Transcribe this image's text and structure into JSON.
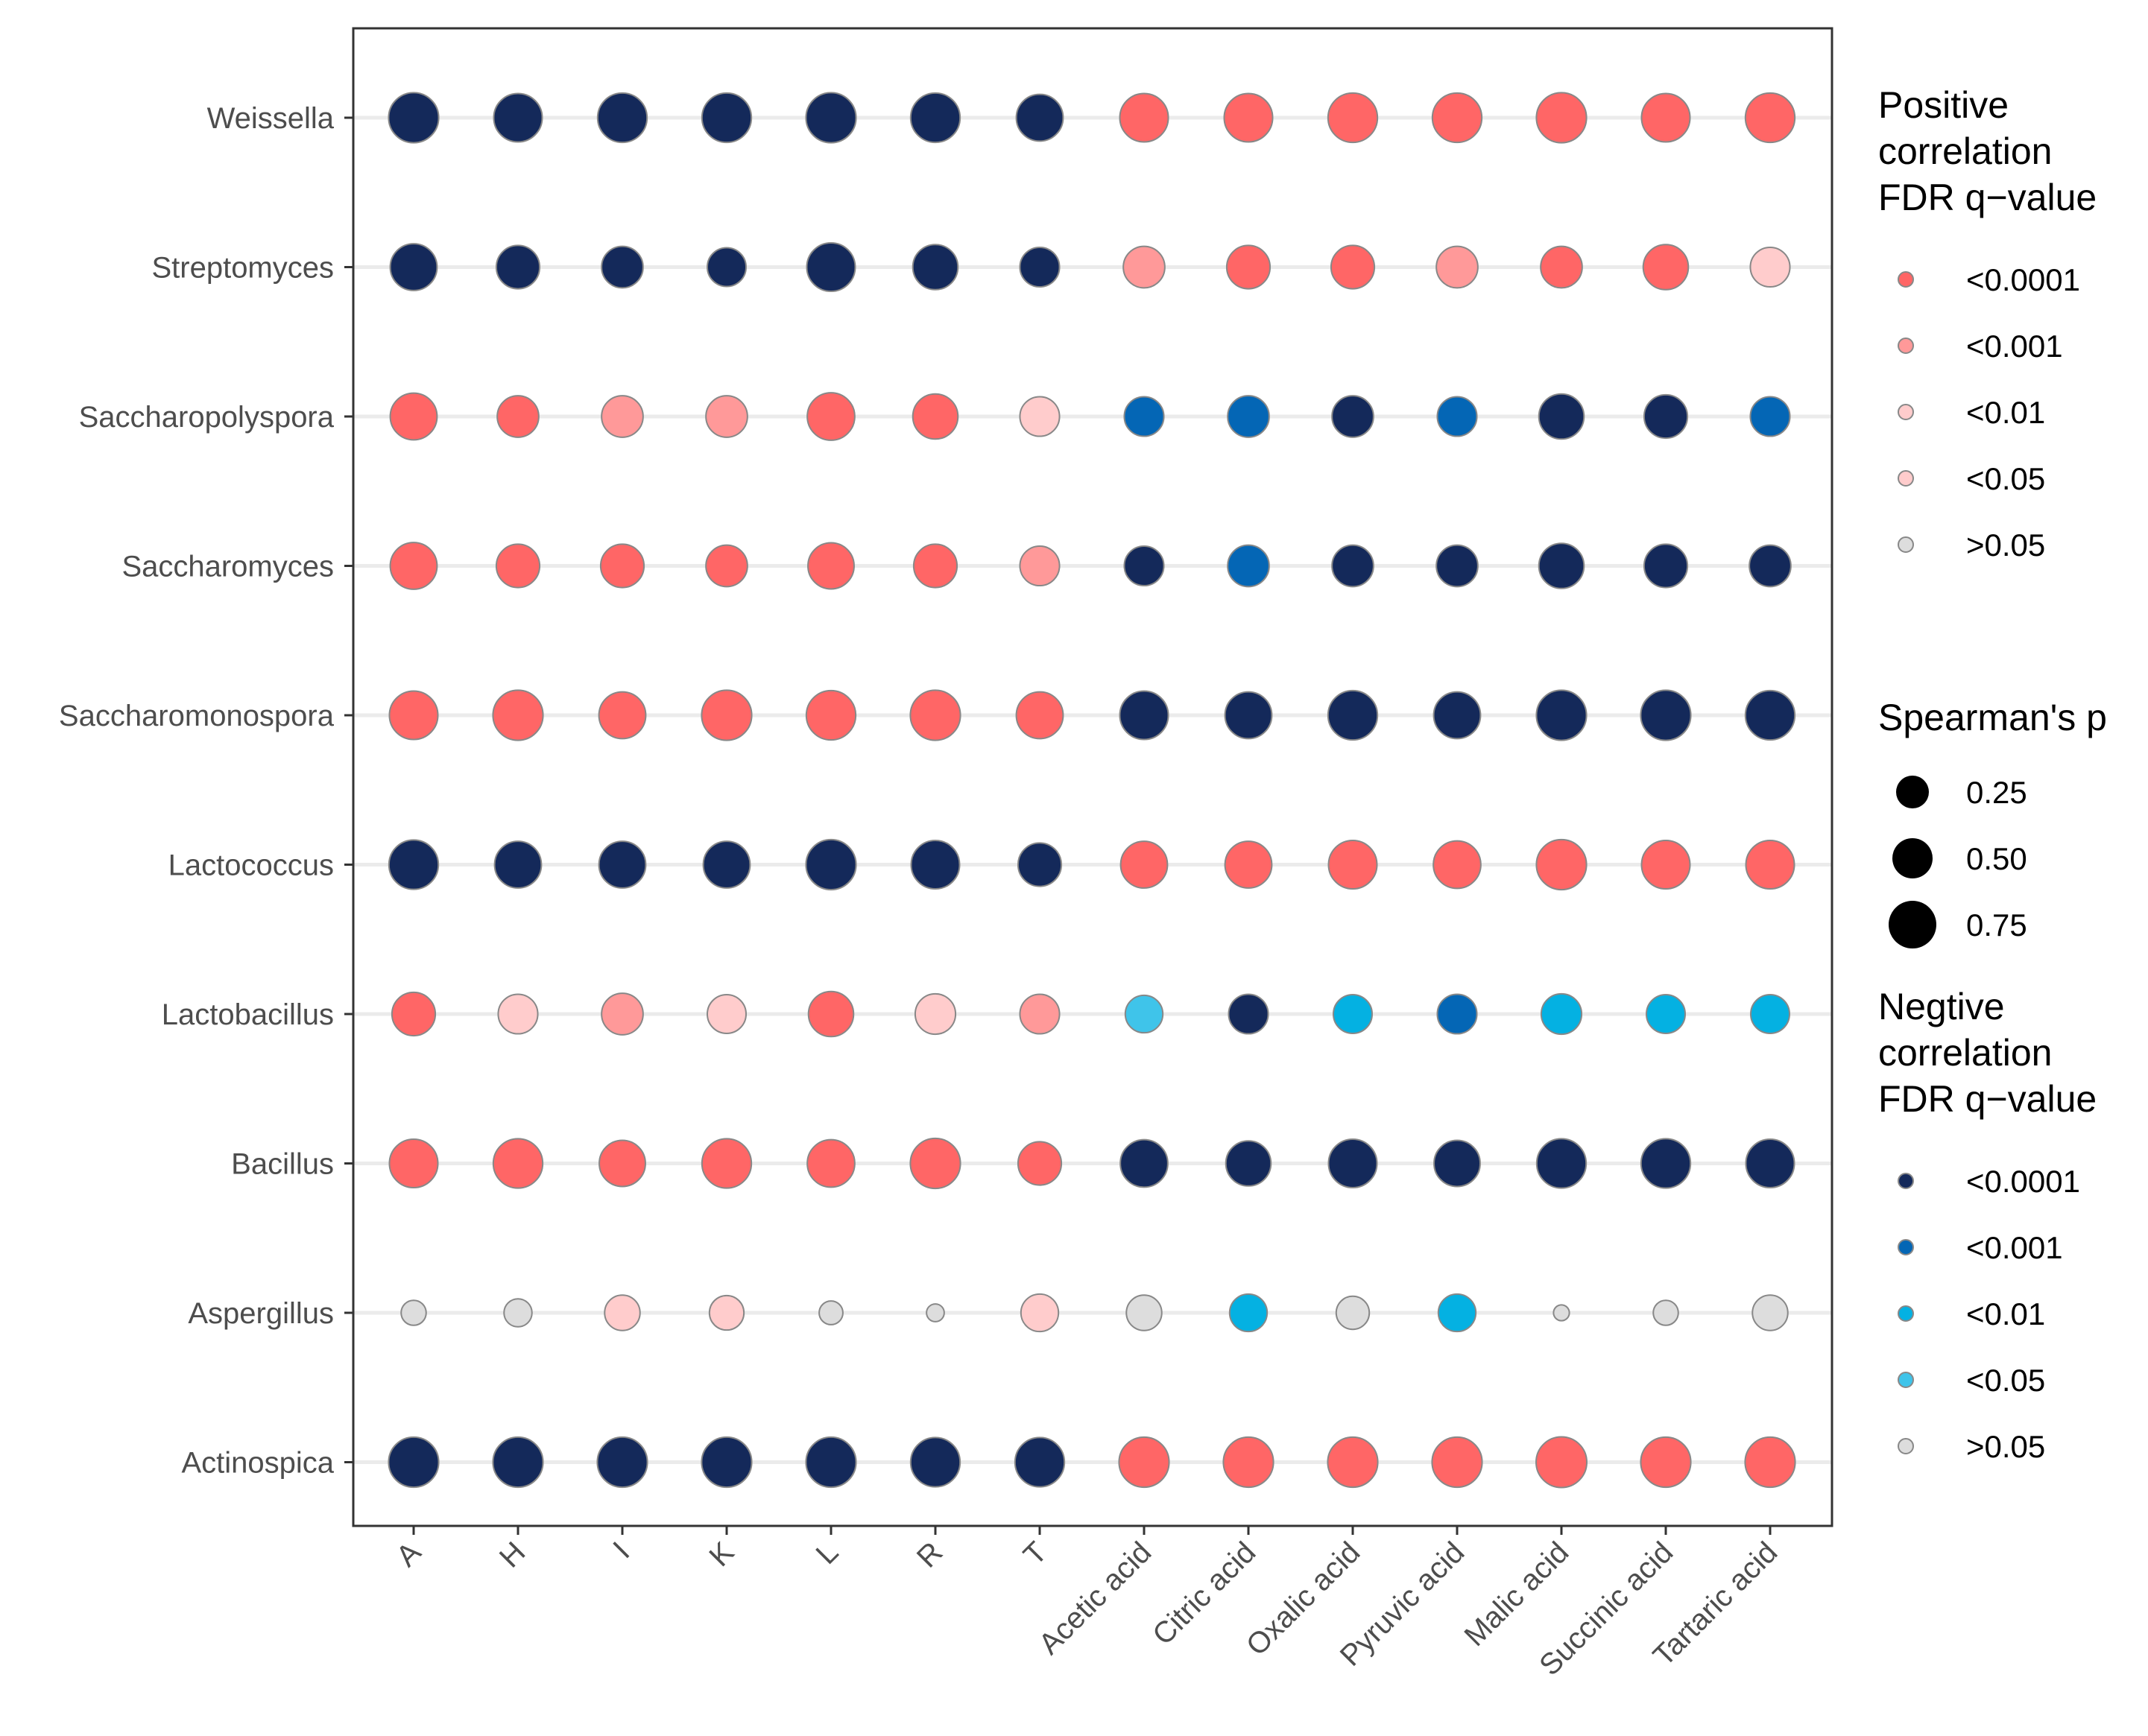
{
  "chart_data": {
    "type": "bubble-matrix",
    "x_categories": [
      "A",
      "H",
      "I",
      "K",
      "L",
      "R",
      "T",
      "Acetic acid",
      "Citric acid",
      "Oxalic acid",
      "Pyruvic acid",
      "Malic acid",
      "Succinic acid",
      "Tartaric acid"
    ],
    "y_categories": [
      "Weissella",
      "Streptomyces",
      "Saccharopolyspora",
      "Saccharomyces",
      "Saccharomonospora",
      "Lactococcus",
      "Lactobacillus",
      "Bacillus",
      "Aspergillus",
      "Actinospica"
    ],
    "cells": {
      "Weissella": [
        {
          "sign": "neg",
          "q": "<0.0001",
          "rho": 0.8
        },
        {
          "sign": "neg",
          "q": "<0.0001",
          "rho": 0.75
        },
        {
          "sign": "neg",
          "q": "<0.0001",
          "rho": 0.78
        },
        {
          "sign": "neg",
          "q": "<0.0001",
          "rho": 0.78
        },
        {
          "sign": "neg",
          "q": "<0.0001",
          "rho": 0.8
        },
        {
          "sign": "neg",
          "q": "<0.0001",
          "rho": 0.78
        },
        {
          "sign": "neg",
          "q": "<0.0001",
          "rho": 0.7
        },
        {
          "sign": "pos",
          "q": "<0.0001",
          "rho": 0.75
        },
        {
          "sign": "pos",
          "q": "<0.0001",
          "rho": 0.75
        },
        {
          "sign": "pos",
          "q": "<0.0001",
          "rho": 0.78
        },
        {
          "sign": "pos",
          "q": "<0.0001",
          "rho": 0.78
        },
        {
          "sign": "pos",
          "q": "<0.0001",
          "rho": 0.8
        },
        {
          "sign": "pos",
          "q": "<0.0001",
          "rho": 0.75
        },
        {
          "sign": "pos",
          "q": "<0.0001",
          "rho": 0.78
        }
      ],
      "Streptomyces": [
        {
          "sign": "neg",
          "q": "<0.0001",
          "rho": 0.7
        },
        {
          "sign": "neg",
          "q": "<0.0001",
          "rho": 0.6
        },
        {
          "sign": "neg",
          "q": "<0.0001",
          "rho": 0.55
        },
        {
          "sign": "neg",
          "q": "<0.0001",
          "rho": 0.48
        },
        {
          "sign": "neg",
          "q": "<0.0001",
          "rho": 0.75
        },
        {
          "sign": "neg",
          "q": "<0.0001",
          "rho": 0.65
        },
        {
          "sign": "neg",
          "q": "<0.0001",
          "rho": 0.5
        },
        {
          "sign": "pos",
          "q": "<0.001",
          "rho": 0.55
        },
        {
          "sign": "pos",
          "q": "<0.0001",
          "rho": 0.6
        },
        {
          "sign": "pos",
          "q": "<0.0001",
          "rho": 0.6
        },
        {
          "sign": "pos",
          "q": "<0.001",
          "rho": 0.55
        },
        {
          "sign": "pos",
          "q": "<0.0001",
          "rho": 0.55
        },
        {
          "sign": "pos",
          "q": "<0.0001",
          "rho": 0.65
        },
        {
          "sign": "pos",
          "q": "<0.01",
          "rho": 0.5
        }
      ],
      "Saccharopolyspora": [
        {
          "sign": "pos",
          "q": "<0.0001",
          "rho": 0.7
        },
        {
          "sign": "pos",
          "q": "<0.0001",
          "rho": 0.55
        },
        {
          "sign": "pos",
          "q": "<0.001",
          "rho": 0.55
        },
        {
          "sign": "pos",
          "q": "<0.001",
          "rho": 0.55
        },
        {
          "sign": "pos",
          "q": "<0.0001",
          "rho": 0.72
        },
        {
          "sign": "pos",
          "q": "<0.0001",
          "rho": 0.65
        },
        {
          "sign": "pos",
          "q": "<0.01",
          "rho": 0.5
        },
        {
          "sign": "neg",
          "q": "<0.001",
          "rho": 0.5
        },
        {
          "sign": "neg",
          "q": "<0.001",
          "rho": 0.55
        },
        {
          "sign": "neg",
          "q": "<0.0001",
          "rho": 0.55
        },
        {
          "sign": "neg",
          "q": "<0.001",
          "rho": 0.5
        },
        {
          "sign": "neg",
          "q": "<0.0001",
          "rho": 0.65
        },
        {
          "sign": "neg",
          "q": "<0.0001",
          "rho": 0.6
        },
        {
          "sign": "neg",
          "q": "<0.001",
          "rho": 0.5
        }
      ],
      "Saccharomyces": [
        {
          "sign": "pos",
          "q": "<0.0001",
          "rho": 0.7
        },
        {
          "sign": "pos",
          "q": "<0.0001",
          "rho": 0.6
        },
        {
          "sign": "pos",
          "q": "<0.0001",
          "rho": 0.6
        },
        {
          "sign": "pos",
          "q": "<0.0001",
          "rho": 0.55
        },
        {
          "sign": "pos",
          "q": "<0.0001",
          "rho": 0.68
        },
        {
          "sign": "pos",
          "q": "<0.0001",
          "rho": 0.6
        },
        {
          "sign": "pos",
          "q": "<0.001",
          "rho": 0.5
        },
        {
          "sign": "neg",
          "q": "<0.0001",
          "rho": 0.5
        },
        {
          "sign": "neg",
          "q": "<0.001",
          "rho": 0.55
        },
        {
          "sign": "neg",
          "q": "<0.0001",
          "rho": 0.55
        },
        {
          "sign": "neg",
          "q": "<0.0001",
          "rho": 0.55
        },
        {
          "sign": "neg",
          "q": "<0.0001",
          "rho": 0.65
        },
        {
          "sign": "neg",
          "q": "<0.0001",
          "rho": 0.6
        },
        {
          "sign": "neg",
          "q": "<0.0001",
          "rho": 0.55
        }
      ],
      "Saccharomonospora": [
        {
          "sign": "pos",
          "q": "<0.0001",
          "rho": 0.75
        },
        {
          "sign": "pos",
          "q": "<0.0001",
          "rho": 0.8
        },
        {
          "sign": "pos",
          "q": "<0.0001",
          "rho": 0.7
        },
        {
          "sign": "pos",
          "q": "<0.0001",
          "rho": 0.8
        },
        {
          "sign": "pos",
          "q": "<0.0001",
          "rho": 0.78
        },
        {
          "sign": "pos",
          "q": "<0.0001",
          "rho": 0.8
        },
        {
          "sign": "pos",
          "q": "<0.0001",
          "rho": 0.7
        },
        {
          "sign": "neg",
          "q": "<0.0001",
          "rho": 0.75
        },
        {
          "sign": "neg",
          "q": "<0.0001",
          "rho": 0.7
        },
        {
          "sign": "neg",
          "q": "<0.0001",
          "rho": 0.78
        },
        {
          "sign": "neg",
          "q": "<0.0001",
          "rho": 0.7
        },
        {
          "sign": "neg",
          "q": "<0.0001",
          "rho": 0.8
        },
        {
          "sign": "neg",
          "q": "<0.0001",
          "rho": 0.8
        },
        {
          "sign": "neg",
          "q": "<0.0001",
          "rho": 0.78
        }
      ],
      "Lactococcus": [
        {
          "sign": "neg",
          "q": "<0.0001",
          "rho": 0.78
        },
        {
          "sign": "neg",
          "q": "<0.0001",
          "rho": 0.7
        },
        {
          "sign": "neg",
          "q": "<0.0001",
          "rho": 0.7
        },
        {
          "sign": "neg",
          "q": "<0.0001",
          "rho": 0.7
        },
        {
          "sign": "neg",
          "q": "<0.0001",
          "rho": 0.8
        },
        {
          "sign": "neg",
          "q": "<0.0001",
          "rho": 0.75
        },
        {
          "sign": "neg",
          "q": "<0.0001",
          "rho": 0.6
        },
        {
          "sign": "pos",
          "q": "<0.0001",
          "rho": 0.7
        },
        {
          "sign": "pos",
          "q": "<0.0001",
          "rho": 0.7
        },
        {
          "sign": "pos",
          "q": "<0.0001",
          "rho": 0.75
        },
        {
          "sign": "pos",
          "q": "<0.0001",
          "rho": 0.72
        },
        {
          "sign": "pos",
          "q": "<0.0001",
          "rho": 0.8
        },
        {
          "sign": "pos",
          "q": "<0.0001",
          "rho": 0.75
        },
        {
          "sign": "pos",
          "q": "<0.0001",
          "rho": 0.75
        }
      ],
      "Lactobacillus": [
        {
          "sign": "pos",
          "q": "<0.0001",
          "rho": 0.6
        },
        {
          "sign": "pos",
          "q": "<0.01",
          "rho": 0.5
        },
        {
          "sign": "pos",
          "q": "<0.001",
          "rho": 0.55
        },
        {
          "sign": "pos",
          "q": "<0.01",
          "rho": 0.48
        },
        {
          "sign": "pos",
          "q": "<0.0001",
          "rho": 0.65
        },
        {
          "sign": "pos",
          "q": "<0.01",
          "rho": 0.52
        },
        {
          "sign": "pos",
          "q": "<0.001",
          "rho": 0.5
        },
        {
          "sign": "neg",
          "q": "<0.05",
          "rho": 0.45
        },
        {
          "sign": "neg",
          "q": "<0.0001",
          "rho": 0.5
        },
        {
          "sign": "neg",
          "q": "<0.01",
          "rho": 0.48
        },
        {
          "sign": "neg",
          "q": "<0.001",
          "rho": 0.5
        },
        {
          "sign": "neg",
          "q": "<0.01",
          "rho": 0.52
        },
        {
          "sign": "neg",
          "q": "<0.01",
          "rho": 0.48
        },
        {
          "sign": "neg",
          "q": "<0.01",
          "rho": 0.48
        }
      ],
      "Bacillus": [
        {
          "sign": "pos",
          "q": "<0.0001",
          "rho": 0.75
        },
        {
          "sign": "pos",
          "q": "<0.0001",
          "rho": 0.78
        },
        {
          "sign": "pos",
          "q": "<0.0001",
          "rho": 0.68
        },
        {
          "sign": "pos",
          "q": "<0.0001",
          "rho": 0.78
        },
        {
          "sign": "pos",
          "q": "<0.0001",
          "rho": 0.72
        },
        {
          "sign": "pos",
          "q": "<0.0001",
          "rho": 0.8
        },
        {
          "sign": "pos",
          "q": "<0.0001",
          "rho": 0.6
        },
        {
          "sign": "neg",
          "q": "<0.0001",
          "rho": 0.72
        },
        {
          "sign": "neg",
          "q": "<0.0001",
          "rho": 0.65
        },
        {
          "sign": "neg",
          "q": "<0.0001",
          "rho": 0.75
        },
        {
          "sign": "neg",
          "q": "<0.0001",
          "rho": 0.68
        },
        {
          "sign": "neg",
          "q": "<0.0001",
          "rho": 0.78
        },
        {
          "sign": "neg",
          "q": "<0.0001",
          "rho": 0.78
        },
        {
          "sign": "neg",
          "q": "<0.0001",
          "rho": 0.75
        }
      ],
      "Aspergillus": [
        {
          "sign": "pos",
          "q": ">0.05",
          "rho": 0.2
        },
        {
          "sign": "pos",
          "q": ">0.05",
          "rho": 0.25
        },
        {
          "sign": "pos",
          "q": "<0.05",
          "rho": 0.4
        },
        {
          "sign": "pos",
          "q": "<0.05",
          "rho": 0.38
        },
        {
          "sign": "pos",
          "q": ">0.05",
          "rho": 0.18
        },
        {
          "sign": "pos",
          "q": ">0.05",
          "rho": 0.1
        },
        {
          "sign": "pos",
          "q": "<0.05",
          "rho": 0.45
        },
        {
          "sign": "neg",
          "q": ">0.05",
          "rho": 0.4
        },
        {
          "sign": "neg",
          "q": "<0.01",
          "rho": 0.45
        },
        {
          "sign": "neg",
          "q": ">0.05",
          "rho": 0.35
        },
        {
          "sign": "neg",
          "q": "<0.01",
          "rho": 0.45
        },
        {
          "sign": "neg",
          "q": ">0.05",
          "rho": 0.08
        },
        {
          "sign": "neg",
          "q": ">0.05",
          "rho": 0.2
        },
        {
          "sign": "neg",
          "q": ">0.05",
          "rho": 0.4
        }
      ],
      "Actinospica": [
        {
          "sign": "neg",
          "q": "<0.0001",
          "rho": 0.8
        },
        {
          "sign": "neg",
          "q": "<0.0001",
          "rho": 0.8
        },
        {
          "sign": "neg",
          "q": "<0.0001",
          "rho": 0.8
        },
        {
          "sign": "neg",
          "q": "<0.0001",
          "rho": 0.8
        },
        {
          "sign": "neg",
          "q": "<0.0001",
          "rho": 0.8
        },
        {
          "sign": "neg",
          "q": "<0.0001",
          "rho": 0.78
        },
        {
          "sign": "neg",
          "q": "<0.0001",
          "rho": 0.78
        },
        {
          "sign": "pos",
          "q": "<0.0001",
          "rho": 0.8
        },
        {
          "sign": "pos",
          "q": "<0.0001",
          "rho": 0.8
        },
        {
          "sign": "pos",
          "q": "<0.0001",
          "rho": 0.8
        },
        {
          "sign": "pos",
          "q": "<0.0001",
          "rho": 0.8
        },
        {
          "sign": "pos",
          "q": "<0.0001",
          "rho": 0.82
        },
        {
          "sign": "pos",
          "q": "<0.0001",
          "rho": 0.8
        },
        {
          "sign": "pos",
          "q": "<0.0001",
          "rho": 0.8
        }
      ]
    },
    "legend_positive": {
      "title": [
        "Positive",
        "correlation",
        "FDR q−value"
      ],
      "levels": [
        "<0.0001",
        "<0.001",
        "<0.01",
        "<0.05",
        ">0.05"
      ]
    },
    "legend_size": {
      "title": "Spearman's p",
      "levels": [
        0.25,
        0.5,
        0.75
      ],
      "labels": [
        "0.25",
        "0.50",
        "0.75"
      ]
    },
    "legend_negative": {
      "title": [
        "Negtive",
        "correlation",
        "FDR q−value"
      ],
      "levels": [
        "<0.0001",
        "<0.001",
        "<0.01",
        "<0.05",
        ">0.05"
      ]
    },
    "colors": {
      "pos": {
        "<0.0001": "#FF6666",
        "<0.001": "#FF9999",
        "<0.01": "#FFCCCC",
        "<0.05": "#FFCCCC",
        ">0.05": "#DDDDDD"
      },
      "neg": {
        "<0.0001": "#14295A",
        "<0.001": "#0466B5",
        "<0.01": "#04B1E2",
        "<0.05": "#3FC4EA",
        ">0.05": "#DDDDDD"
      },
      "gridline": "#EBEBEB",
      "panel_border": "#333333",
      "dot_stroke": "#888888"
    }
  }
}
